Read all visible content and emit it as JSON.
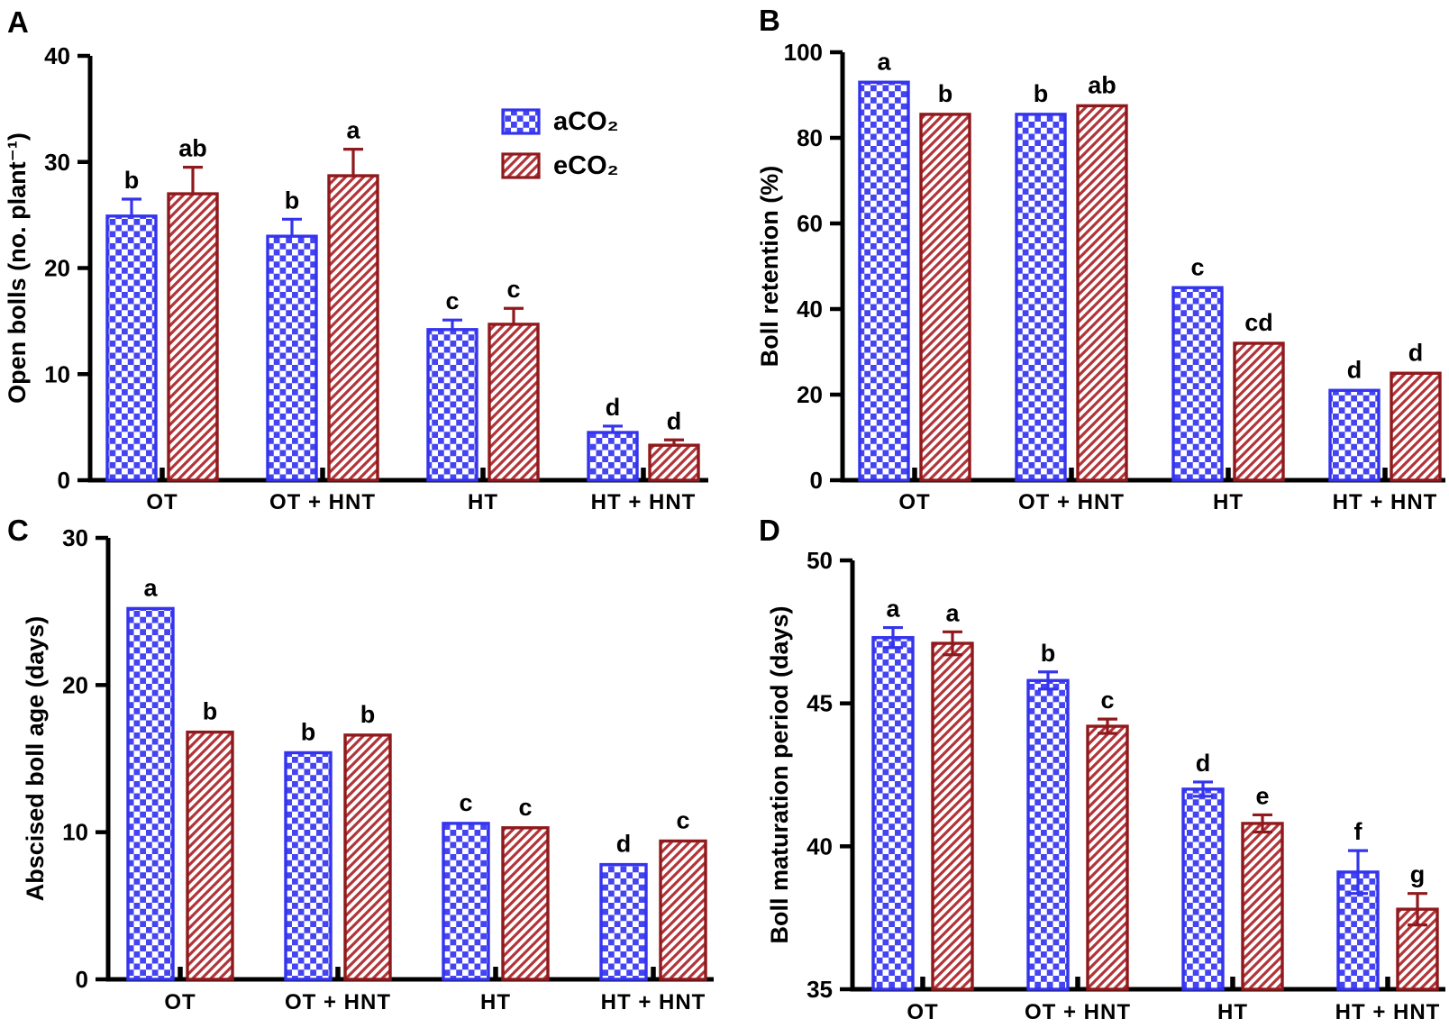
{
  "figure": {
    "background": "#ffffff",
    "legend": {
      "items": [
        {
          "label": "aCO₂",
          "series": "aCO2",
          "pattern": "blue-checkerboard"
        },
        {
          "label": "eCO₂",
          "series": "eCO2",
          "pattern": "red-diagonal-hatch"
        }
      ],
      "location": "panel-A-upper-right"
    },
    "colors": {
      "aCO2_border": "#3434ee",
      "aCO2_fill": "#4444f2",
      "eCO2_border": "#8f191c",
      "eCO2_stripe": "#b23438",
      "axis": "#000000",
      "text": "#000000"
    }
  },
  "chart_data": [
    {
      "panel": "A",
      "type": "bar",
      "title": "",
      "xlabel": "",
      "ylabel": "Open bolls (no. plant⁻¹)",
      "ylim": [
        0,
        40
      ],
      "yticks": [
        0,
        10,
        20,
        30,
        40
      ],
      "grid": false,
      "legend_visible": true,
      "error_bars": "up",
      "categories": [
        "OT",
        "OT + HNT",
        "HT",
        "HT + HNT"
      ],
      "series": [
        {
          "name": "aCO₂",
          "values": [
            24.9,
            23.0,
            14.2,
            4.5
          ],
          "errors": [
            1.6,
            1.6,
            0.9,
            0.6
          ],
          "letters": [
            "b",
            "b",
            "c",
            "d"
          ]
        },
        {
          "name": "eCO₂",
          "values": [
            27.0,
            28.7,
            14.7,
            3.3
          ],
          "errors": [
            2.5,
            2.5,
            1.5,
            0.5
          ],
          "letters": [
            "ab",
            "a",
            "c",
            "d"
          ]
        }
      ]
    },
    {
      "panel": "B",
      "type": "bar",
      "title": "",
      "xlabel": "",
      "ylabel": "Boll retention (%)",
      "ylim": [
        0,
        100
      ],
      "yticks": [
        0,
        20,
        40,
        60,
        80,
        100
      ],
      "grid": false,
      "legend_visible": false,
      "error_bars": "none",
      "categories": [
        "OT",
        "OT + HNT",
        "HT",
        "HT + HNT"
      ],
      "series": [
        {
          "name": "aCO₂",
          "values": [
            93,
            85.5,
            45,
            21
          ],
          "errors": [
            0,
            0,
            0,
            0
          ],
          "letters": [
            "a",
            "b",
            "c",
            "d"
          ]
        },
        {
          "name": "eCO₂",
          "values": [
            85.5,
            87.5,
            32,
            25
          ],
          "errors": [
            0,
            0,
            0,
            0
          ],
          "letters": [
            "b",
            "ab",
            "cd",
            "d"
          ]
        }
      ]
    },
    {
      "panel": "C",
      "type": "bar",
      "title": "",
      "xlabel": "",
      "ylabel": "Abscised boll age (days)",
      "ylim": [
        0,
        30
      ],
      "yticks": [
        0,
        10,
        20,
        30
      ],
      "grid": false,
      "legend_visible": false,
      "error_bars": "none",
      "categories": [
        "OT",
        "OT + HNT",
        "HT",
        "HT + HNT"
      ],
      "series": [
        {
          "name": "aCO₂",
          "values": [
            25.2,
            15.4,
            10.6,
            7.8
          ],
          "errors": [
            0,
            0,
            0,
            0
          ],
          "letters": [
            "a",
            "b",
            "c",
            "d"
          ]
        },
        {
          "name": "eCO₂",
          "values": [
            16.8,
            16.6,
            10.3,
            9.4
          ],
          "errors": [
            0,
            0,
            0,
            0
          ],
          "letters": [
            "b",
            "b",
            "c",
            "c"
          ]
        }
      ]
    },
    {
      "panel": "D",
      "type": "bar",
      "title": "",
      "xlabel": "",
      "ylabel": "Boll maturation period (days)",
      "ylim": [
        35,
        50
      ],
      "yticks": [
        35,
        40,
        45,
        50
      ],
      "grid": false,
      "legend_visible": false,
      "error_bars": "both",
      "categories": [
        "OT",
        "OT + HNT",
        "HT",
        "HT + HNT"
      ],
      "series": [
        {
          "name": "aCO₂",
          "values": [
            47.3,
            45.8,
            42.0,
            39.1
          ],
          "errors": [
            0.35,
            0.3,
            0.25,
            0.75
          ],
          "letters": [
            "a",
            "b",
            "d",
            "f"
          ]
        },
        {
          "name": "eCO₂",
          "values": [
            47.1,
            44.2,
            40.8,
            37.8
          ],
          "errors": [
            0.4,
            0.25,
            0.3,
            0.55
          ],
          "letters": [
            "a",
            "c",
            "e",
            "g"
          ]
        }
      ]
    }
  ]
}
